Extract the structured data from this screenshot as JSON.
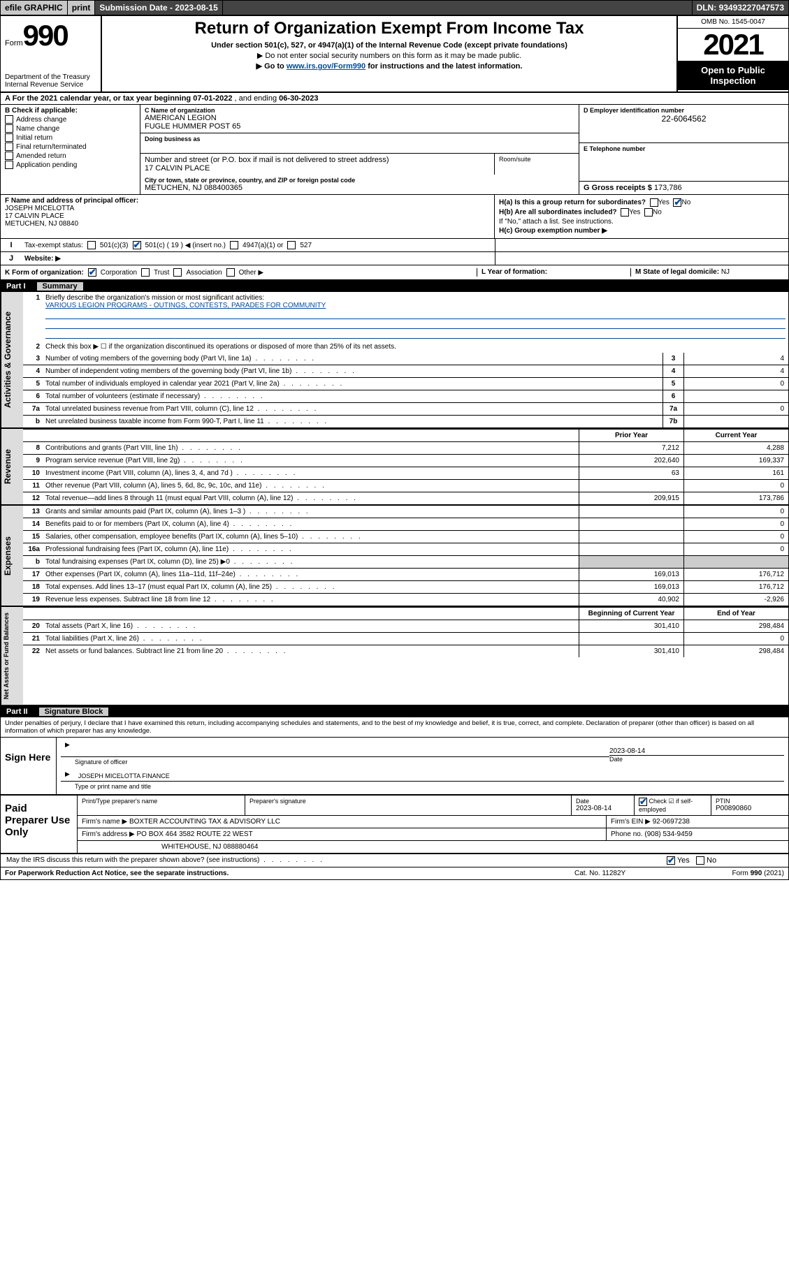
{
  "colors": {
    "accent": "#004b9b",
    "shade": "#cccccc",
    "dark_bar": "#444444"
  },
  "topbar": {
    "efile": "efile GRAPHIC",
    "print": "print",
    "subdate_label": "Submission Date - ",
    "subdate": "2023-08-15",
    "dln_label": "DLN: ",
    "dln": "93493227047573"
  },
  "header": {
    "form_label": "Form",
    "form_no": "990",
    "dept": "Department of the Treasury",
    "irs": "Internal Revenue Service",
    "title": "Return of Organization Exempt From Income Tax",
    "sub1": "Under section 501(c), 527, or 4947(a)(1) of the Internal Revenue Code (except private foundations)",
    "sub2": "▶ Do not enter social security numbers on this form as it may be made public.",
    "sub3_pre": "▶ Go to ",
    "sub3_link": "www.irs.gov/Form990",
    "sub3_post": " for instructions and the latest information.",
    "omb": "OMB No. 1545-0047",
    "year": "2021",
    "open": "Open to Public Inspection"
  },
  "period": {
    "label_a": "A For the 2021 calendar year, or tax year beginning ",
    "begin": "07-01-2022",
    "mid": "   , and ending ",
    "end": "06-30-2023"
  },
  "box_b": {
    "label": "B Check if applicable:",
    "items": [
      "Address change",
      "Name change",
      "Initial return",
      "Final return/terminated",
      "Amended return",
      "Application pending"
    ]
  },
  "box_c": {
    "name_lbl": "C Name of organization",
    "name1": "AMERICAN LEGION",
    "name2": "FUGLE HUMMER POST 65",
    "dba_lbl": "Doing business as",
    "street_lbl": "Number and street (or P.O. box if mail is not delivered to street address)",
    "room_lbl": "Room/suite",
    "street": "17 CALVIN PLACE",
    "city_lbl": "City or town, state or province, country, and ZIP or foreign postal code",
    "city": "METUCHEN, NJ  088400365"
  },
  "box_d": {
    "lbl": "D Employer identification number",
    "val": "22-6064562"
  },
  "box_e": {
    "lbl": "E Telephone number",
    "val": ""
  },
  "box_g": {
    "lbl": "G Gross receipts $ ",
    "val": "173,786"
  },
  "box_f": {
    "lbl": "F Name and address of principal officer:",
    "name": "JOSEPH MICELOTTA",
    "street": "17 CALVIN PLACE",
    "city": "METUCHEN, NJ  08840"
  },
  "box_h": {
    "a_lbl": "H(a)  Is this a group return for subordinates?",
    "a_yes": "Yes",
    "a_no": "No",
    "b_lbl": "H(b)  Are all subordinates included?",
    "b_yes": "Yes",
    "b_no": "No",
    "b_note": "If \"No,\" attach a list. See instructions.",
    "c_lbl": "H(c)  Group exemption number ▶"
  },
  "box_i": {
    "lbl": "Tax-exempt status:",
    "opts": [
      "501(c)(3)",
      "501(c) ( 19 ) ◀ (insert no.)",
      "4947(a)(1) or",
      "527"
    ],
    "checked_idx": 1
  },
  "box_j": {
    "lbl": "Website: ▶",
    "val": ""
  },
  "box_k": {
    "lbl": "K Form of organization:",
    "opts": [
      "Corporation",
      "Trust",
      "Association",
      "Other ▶"
    ],
    "checked_idx": 0
  },
  "box_l": {
    "lbl": "L Year of formation:",
    "val": ""
  },
  "box_m": {
    "lbl": "M State of legal domicile: ",
    "val": "NJ"
  },
  "part1": {
    "no": "Part I",
    "title": "Summary"
  },
  "summary": {
    "vtab1": "Activities & Governance",
    "vtab2": "Revenue",
    "vtab3": "Expenses",
    "vtab4": "Net Assets or Fund Balances",
    "q1": "Briefly describe the organization's mission or most significant activities:",
    "q1_val": "VARIOUS LEGION PROGRAMS - OUTINGS, CONTESTS, PARADES FOR COMMUNITY",
    "q2": "Check this box ▶ ☐  if the organization discontinued its operations or disposed of more than 25% of its net assets.",
    "rows_gov": [
      {
        "n": "3",
        "t": "Number of voting members of the governing body (Part VI, line 1a)",
        "b": "3",
        "v": "4"
      },
      {
        "n": "4",
        "t": "Number of independent voting members of the governing body (Part VI, line 1b)",
        "b": "4",
        "v": "4"
      },
      {
        "n": "5",
        "t": "Total number of individuals employed in calendar year 2021 (Part V, line 2a)",
        "b": "5",
        "v": "0"
      },
      {
        "n": "6",
        "t": "Total number of volunteers (estimate if necessary)",
        "b": "6",
        "v": ""
      },
      {
        "n": "7a",
        "t": "Total unrelated business revenue from Part VIII, column (C), line 12",
        "b": "7a",
        "v": "0"
      },
      {
        "n": "b",
        "t": "Net unrelated business taxable income from Form 990-T, Part I, line 11",
        "b": "7b",
        "v": ""
      }
    ],
    "col_prior": "Prior Year",
    "col_curr": "Current Year",
    "col_boy": "Beginning of Current Year",
    "col_eoy": "End of Year",
    "rows_rev": [
      {
        "n": "8",
        "t": "Contributions and grants (Part VIII, line 1h)",
        "p": "7,212",
        "c": "4,288"
      },
      {
        "n": "9",
        "t": "Program service revenue (Part VIII, line 2g)",
        "p": "202,640",
        "c": "169,337"
      },
      {
        "n": "10",
        "t": "Investment income (Part VIII, column (A), lines 3, 4, and 7d )",
        "p": "63",
        "c": "161"
      },
      {
        "n": "11",
        "t": "Other revenue (Part VIII, column (A), lines 5, 6d, 8c, 9c, 10c, and 11e)",
        "p": "",
        "c": "0"
      },
      {
        "n": "12",
        "t": "Total revenue—add lines 8 through 11 (must equal Part VIII, column (A), line 12)",
        "p": "209,915",
        "c": "173,786"
      }
    ],
    "rows_exp": [
      {
        "n": "13",
        "t": "Grants and similar amounts paid (Part IX, column (A), lines 1–3 )",
        "p": "",
        "c": "0"
      },
      {
        "n": "14",
        "t": "Benefits paid to or for members (Part IX, column (A), line 4)",
        "p": "",
        "c": "0"
      },
      {
        "n": "15",
        "t": "Salaries, other compensation, employee benefits (Part IX, column (A), lines 5–10)",
        "p": "",
        "c": "0"
      },
      {
        "n": "16a",
        "t": "Professional fundraising fees (Part IX, column (A), line 11e)",
        "p": "",
        "c": "0"
      },
      {
        "n": "b",
        "t": "Total fundraising expenses (Part IX, column (D), line 25) ▶0",
        "p": "SHADE",
        "c": "SHADE"
      },
      {
        "n": "17",
        "t": "Other expenses (Part IX, column (A), lines 11a–11d, 11f–24e)",
        "p": "169,013",
        "c": "176,712"
      },
      {
        "n": "18",
        "t": "Total expenses. Add lines 13–17 (must equal Part IX, column (A), line 25)",
        "p": "169,013",
        "c": "176,712"
      },
      {
        "n": "19",
        "t": "Revenue less expenses. Subtract line 18 from line 12",
        "p": "40,902",
        "c": "-2,926"
      }
    ],
    "rows_net": [
      {
        "n": "20",
        "t": "Total assets (Part X, line 16)",
        "p": "301,410",
        "c": "298,484"
      },
      {
        "n": "21",
        "t": "Total liabilities (Part X, line 26)",
        "p": "",
        "c": "0"
      },
      {
        "n": "22",
        "t": "Net assets or fund balances. Subtract line 21 from line 20",
        "p": "301,410",
        "c": "298,484"
      }
    ]
  },
  "part2": {
    "no": "Part II",
    "title": "Signature Block"
  },
  "penalty": "Under penalties of perjury, I declare that I have examined this return, including accompanying schedules and statements, and to the best of my knowledge and belief, it is true, correct, and complete. Declaration of preparer (other than officer) is based on all information of which preparer has any knowledge.",
  "sign": {
    "here": "Sign Here",
    "sig_lbl": "Signature of officer",
    "date_lbl": "Date",
    "date": "2023-08-14",
    "name": "JOSEPH MICELOTTA  FINANCE",
    "name_lbl": "Type or print name and title"
  },
  "prep": {
    "title": "Paid Preparer Use Only",
    "h1": "Print/Type preparer's name",
    "h2": "Preparer's signature",
    "h3": "Date",
    "h3v": "2023-08-14",
    "h4": "Check ☑ if self-employed",
    "h5": "PTIN",
    "h5v": "P00890860",
    "firm_lbl": "Firm's name    ▶ ",
    "firm": "BOXTER ACCOUNTING TAX & ADVISORY LLC",
    "ein_lbl": "Firm's EIN ▶ ",
    "ein": "92-0697238",
    "addr_lbl": "Firm's address ▶ ",
    "addr1": "PO BOX 464 3582 ROUTE 22 WEST",
    "addr2": "WHITEHOUSE, NJ  088880464",
    "phone_lbl": "Phone no. ",
    "phone": "(908) 534-9459"
  },
  "discuss": {
    "q": "May the IRS discuss this return with the preparer shown above? (see instructions)",
    "yes": "Yes",
    "no": "No"
  },
  "footer": {
    "l": "For Paperwork Reduction Act Notice, see the separate instructions.",
    "m": "Cat. No. 11282Y",
    "r": "Form 990 (2021)"
  }
}
